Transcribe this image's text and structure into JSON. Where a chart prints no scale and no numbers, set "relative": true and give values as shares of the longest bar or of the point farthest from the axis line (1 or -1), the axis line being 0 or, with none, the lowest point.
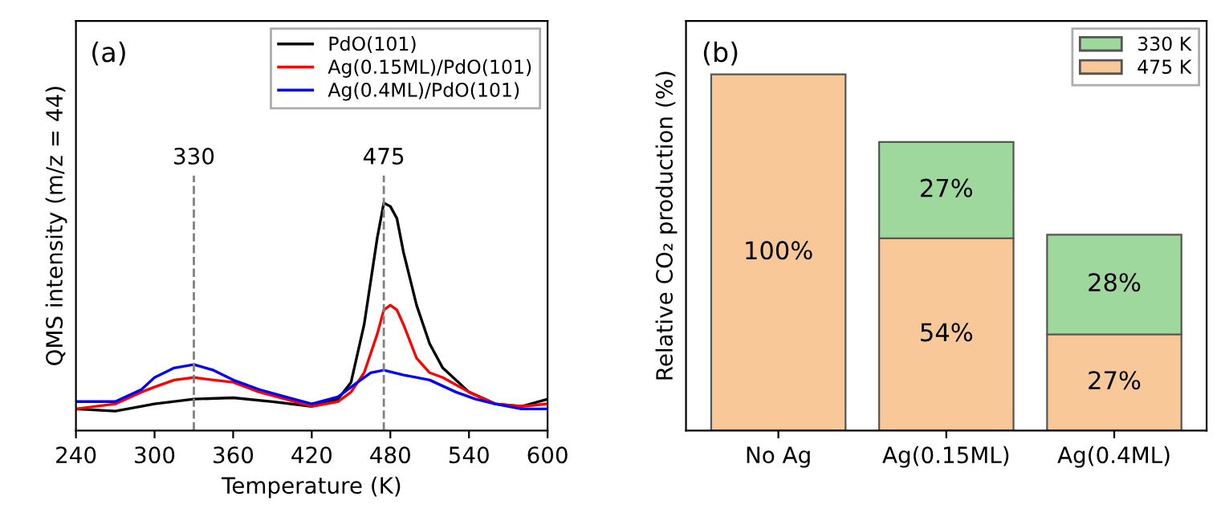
{
  "chart_data": [
    {
      "type": "line",
      "relative": true,
      "xlabel": "Temperature (K)",
      "ylabel": "QMS intensity (m/z = 44)",
      "xlim": [
        240,
        600
      ],
      "xticks": [
        240,
        300,
        360,
        420,
        480,
        540,
        600
      ],
      "tick_labels": "x",
      "legend": "top right",
      "grid": false,
      "line_style": "solid",
      "annotations": [
        "(a)"
      ],
      "ref_lines": [
        {
          "axis": "x",
          "value": 330,
          "label": "330",
          "color": "#808080",
          "line_style": "dashed"
        },
        {
          "axis": "x",
          "value": 475,
          "label": "475",
          "color": "#808080",
          "line_style": "dashed"
        }
      ],
      "series": [
        {
          "name": "PdO(101)",
          "color": "#000000",
          "x": [
            240,
            270,
            300,
            330,
            360,
            390,
            420,
            440,
            450,
            460,
            470,
            475,
            480,
            485,
            490,
            500,
            510,
            520,
            540,
            560,
            580,
            600
          ],
          "values": [
            0.095,
            0.085,
            0.117,
            0.138,
            0.144,
            0.127,
            0.106,
            0.138,
            0.212,
            0.466,
            0.847,
            1.0,
            0.985,
            0.932,
            0.784,
            0.551,
            0.381,
            0.275,
            0.169,
            0.117,
            0.106,
            0.138
          ]
        },
        {
          "name": "Ag(0.15ML)/PdO(101)",
          "color": "#ff0000",
          "x": [
            240,
            270,
            290,
            300,
            315,
            330,
            345,
            360,
            380,
            400,
            420,
            440,
            450,
            460,
            470,
            475,
            480,
            485,
            490,
            500,
            510,
            520,
            540,
            560,
            580,
            600
          ],
          "values": [
            0.095,
            0.117,
            0.169,
            0.191,
            0.222,
            0.233,
            0.222,
            0.212,
            0.169,
            0.138,
            0.106,
            0.127,
            0.169,
            0.254,
            0.424,
            0.53,
            0.551,
            0.53,
            0.466,
            0.318,
            0.254,
            0.233,
            0.169,
            0.117,
            0.106,
            0.117
          ]
        },
        {
          "name": "Ag(0.4ML)/PdO(101)",
          "color": "#0000ff",
          "x": [
            240,
            270,
            290,
            300,
            315,
            330,
            345,
            360,
            380,
            400,
            420,
            440,
            455,
            465,
            475,
            490,
            510,
            530,
            545,
            560,
            580,
            600
          ],
          "values": [
            0.127,
            0.127,
            0.18,
            0.233,
            0.275,
            0.29,
            0.265,
            0.222,
            0.18,
            0.148,
            0.117,
            0.148,
            0.212,
            0.254,
            0.265,
            0.244,
            0.222,
            0.169,
            0.138,
            0.117,
            0.095,
            0.095
          ]
        }
      ]
    },
    {
      "type": "bar",
      "stacked": true,
      "ylabel": "Relative CO₂ production (%)",
      "categories": [
        "No Ag",
        "Ag(0.15ML)",
        "Ag(0.4ML)"
      ],
      "tick_labels": "x",
      "legend": "top right",
      "grid": false,
      "annotations": [
        "(b)"
      ],
      "series": [
        {
          "name": "475 K",
          "color": "#f9c898",
          "values": [
            100,
            54,
            27
          ],
          "value_labels": [
            "100%",
            "54%",
            "27%"
          ]
        },
        {
          "name": "330 K",
          "color": "#9ed89c",
          "values": [
            null,
            27,
            28
          ],
          "value_labels": [
            null,
            "27%",
            "28%"
          ]
        }
      ]
    }
  ]
}
